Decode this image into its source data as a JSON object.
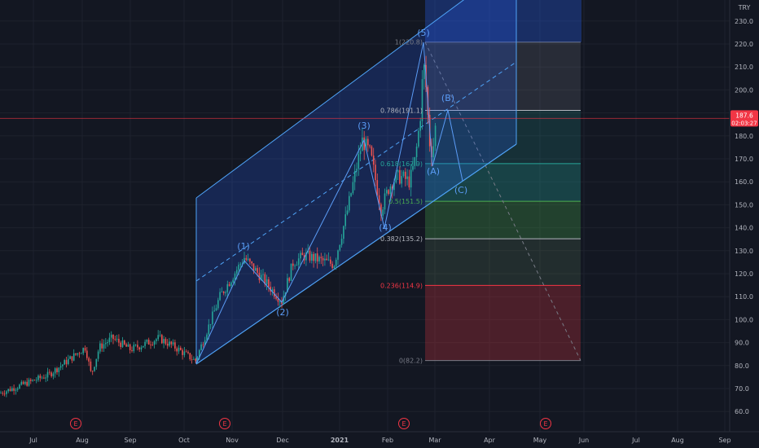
{
  "chart_data": {
    "type": "candlestick",
    "currency": "TRY",
    "price_tag": {
      "value": "187.6",
      "countdown": "02:03:27",
      "color": "#f23645"
    },
    "y_ticks": [
      "230.0",
      "220.0",
      "210.0",
      "200.0",
      "190.0",
      "180.0",
      "170.0",
      "160.0",
      "150.0",
      "140.0",
      "130.0",
      "120.0",
      "110.0",
      "100.0",
      "90.0",
      "80.0",
      "70.0",
      "60.0"
    ],
    "x_ticks": [
      "Jul",
      "Aug",
      "Sep",
      "Oct",
      "Nov",
      "Dec",
      "2021",
      "Feb",
      "Mar",
      "Apr",
      "May",
      "Jun",
      "Jul",
      "Aug",
      "Sep"
    ],
    "earnings_markers": [
      "E",
      "E",
      "E",
      "E"
    ],
    "elliott_wave_labels": [
      "(1)",
      "(2)",
      "(3)",
      "(4)",
      "(5)",
      "(A)",
      "(B)",
      "(C)"
    ],
    "fib_levels": [
      {
        "label": "1(220.8)",
        "color": "#787b86"
      },
      {
        "label": "0.786(191.1)",
        "color": "#b2b5be"
      },
      {
        "label": "0.618(167.9)",
        "color": "#26a69a"
      },
      {
        "label": "0.5(151.5)",
        "color": "#4caf50"
      },
      {
        "label": "0.382(135.2)",
        "color": "#b2b5be"
      },
      {
        "label": "0.236(114.9)",
        "color": "#f23645"
      },
      {
        "label": "0(82.2)",
        "color": "#787b86"
      }
    ],
    "colors": {
      "up": "#26a69a",
      "down": "#ef5350",
      "channel": "#2962ff",
      "channel_line": "#4fa3f7",
      "background": "#131722"
    },
    "grid": true
  }
}
